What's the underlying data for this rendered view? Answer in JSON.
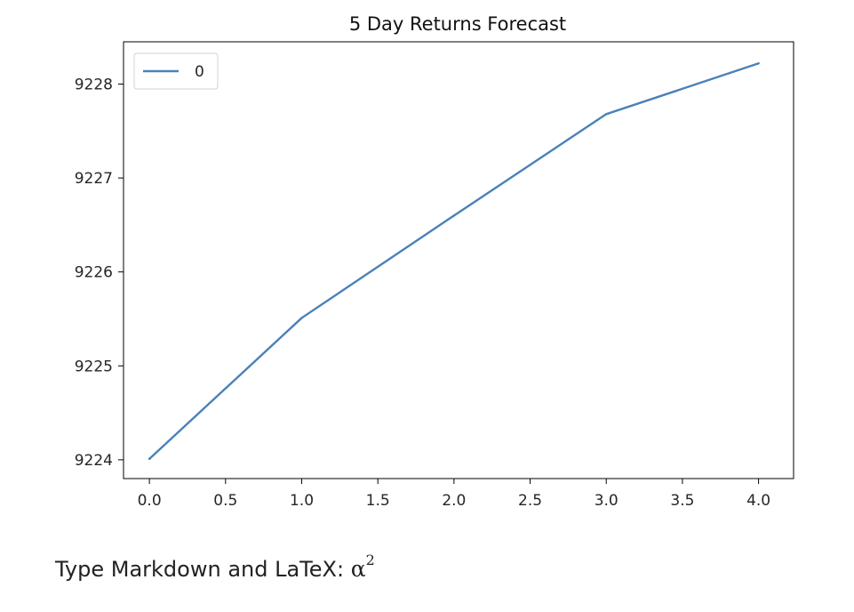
{
  "chart_data": {
    "type": "line",
    "title": "5 Day Returns Forecast",
    "xlabel": "",
    "ylabel": "",
    "x": [
      0,
      1,
      2,
      3,
      4
    ],
    "series": [
      {
        "name": "0",
        "values": [
          9224.01,
          9225.51,
          9226.6,
          9227.68,
          9228.22
        ],
        "color": "#4a81ba"
      }
    ],
    "xlim": [
      -0.17,
      4.23
    ],
    "ylim": [
      9223.8,
      9228.45
    ],
    "xticks": [
      0.0,
      0.5,
      1.0,
      1.5,
      2.0,
      2.5,
      3.0,
      3.5,
      4.0
    ],
    "xtick_labels": [
      "0.0",
      "0.5",
      "1.0",
      "1.5",
      "2.0",
      "2.5",
      "3.0",
      "3.5",
      "4.0"
    ],
    "yticks": [
      9224,
      9225,
      9226,
      9227,
      9228
    ],
    "ytick_labels": [
      "9224",
      "9225",
      "9226",
      "9227",
      "9228"
    ],
    "legend": "upper-left",
    "grid": false
  },
  "markdown_cell": {
    "prompt_text": "Type Markdown and LaTeX: ",
    "math_base": "α",
    "math_sup": "2"
  }
}
